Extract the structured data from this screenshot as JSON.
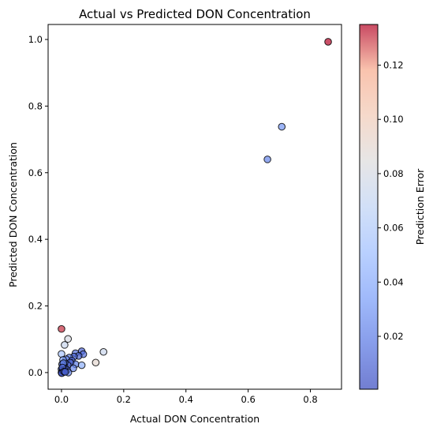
{
  "chart_data": {
    "type": "scatter",
    "title": "Actual vs Predicted DON Concentration",
    "xlabel": "Actual DON Concentration",
    "ylabel": "Predicted DON Concentration",
    "colorbar_label": "Prediction Error",
    "xlim": [
      -0.043,
      0.9
    ],
    "ylim": [
      -0.05,
      1.045
    ],
    "xticks": [
      0.0,
      0.2,
      0.4,
      0.6,
      0.8
    ],
    "xtick_labels": [
      "0.0",
      "0.2",
      "0.4",
      "0.6",
      "0.8"
    ],
    "yticks": [
      0.0,
      0.2,
      0.4,
      0.6,
      0.8,
      1.0
    ],
    "ytick_labels": [
      "0.0",
      "0.2",
      "0.4",
      "0.6",
      "0.8",
      "1.0"
    ],
    "colorbar": {
      "colormap": "coolwarm",
      "range": [
        0.0005,
        0.135
      ],
      "ticks": [
        0.02,
        0.04,
        0.06,
        0.08,
        0.1,
        0.12
      ],
      "tick_labels": [
        "0.02",
        "0.04",
        "0.06",
        "0.08",
        "0.10",
        "0.12"
      ]
    },
    "grid": false,
    "marker_alpha": 0.7,
    "marker_edge_color": "#000000",
    "points": [
      {
        "x": 0.857,
        "y": 0.993,
        "error": 0.135
      },
      {
        "x": 0.708,
        "y": 0.738,
        "error": 0.03
      },
      {
        "x": 0.662,
        "y": 0.64,
        "error": 0.023
      },
      {
        "x": 0.0,
        "y": 0.131,
        "error": 0.131
      },
      {
        "x": 0.021,
        "y": 0.101,
        "error": 0.08
      },
      {
        "x": 0.01,
        "y": 0.083,
        "error": 0.073
      },
      {
        "x": 0.135,
        "y": 0.062,
        "error": 0.073
      },
      {
        "x": 0.11,
        "y": 0.03,
        "error": 0.09
      },
      {
        "x": 0.0,
        "y": 0.056,
        "error": 0.055
      },
      {
        "x": 0.065,
        "y": 0.064,
        "error": 0.008
      },
      {
        "x": 0.07,
        "y": 0.055,
        "error": 0.015
      },
      {
        "x": 0.045,
        "y": 0.058,
        "error": 0.013
      },
      {
        "x": 0.055,
        "y": 0.05,
        "error": 0.01
      },
      {
        "x": 0.04,
        "y": 0.048,
        "error": 0.012
      },
      {
        "x": 0.025,
        "y": 0.045,
        "error": 0.02
      },
      {
        "x": 0.033,
        "y": 0.036,
        "error": 0.005
      },
      {
        "x": 0.015,
        "y": 0.04,
        "error": 0.025
      },
      {
        "x": 0.045,
        "y": 0.025,
        "error": 0.02
      },
      {
        "x": 0.065,
        "y": 0.022,
        "error": 0.043
      },
      {
        "x": 0.038,
        "y": 0.013,
        "error": 0.025
      },
      {
        "x": 0.028,
        "y": 0.03,
        "error": 0.008
      },
      {
        "x": 0.02,
        "y": 0.022,
        "error": 0.01
      },
      {
        "x": 0.01,
        "y": 0.03,
        "error": 0.018
      },
      {
        "x": 0.005,
        "y": 0.038,
        "error": 0.033
      },
      {
        "x": 0.018,
        "y": 0.008,
        "error": 0.012
      },
      {
        "x": 0.022,
        "y": 0.0,
        "error": 0.022
      },
      {
        "x": 0.01,
        "y": 0.015,
        "error": 0.006
      },
      {
        "x": 0.005,
        "y": 0.02,
        "error": 0.015
      },
      {
        "x": 0.003,
        "y": 0.005,
        "error": 0.003
      },
      {
        "x": 0.0,
        "y": 0.01,
        "error": 0.01
      },
      {
        "x": 0.0,
        "y": 0.0,
        "error": 0.001
      },
      {
        "x": 0.002,
        "y": 0.025,
        "error": 0.022
      },
      {
        "x": 0.006,
        "y": 0.028,
        "error": 0.022
      },
      {
        "x": 0.003,
        "y": 0.015,
        "error": 0.012
      },
      {
        "x": 0.001,
        "y": -0.002,
        "error": 0.003
      },
      {
        "x": 0.008,
        "y": 0.003,
        "error": 0.005
      },
      {
        "x": 0.012,
        "y": 0.002,
        "error": 0.01
      }
    ]
  }
}
